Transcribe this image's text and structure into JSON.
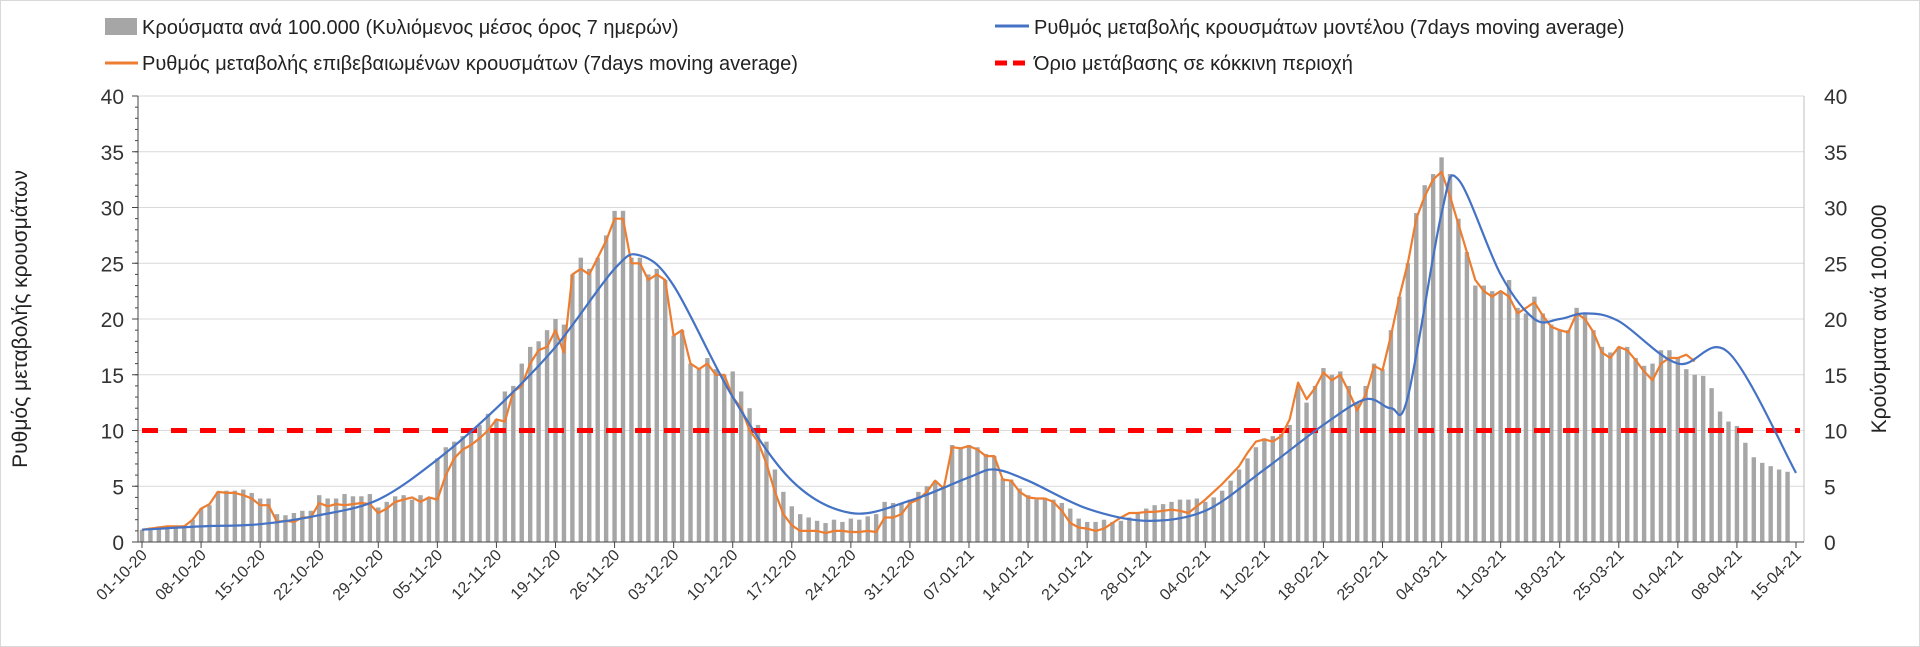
{
  "chart_data": {
    "type": "bar+line",
    "legend": {
      "bars": "Κρούσματα ανά 100.000 (Κυλιόμενος μέσος όρος 7 ημερών)",
      "model": "Ρυθμός μεταβολής κρουσμάτων μοντέλου (7days moving average)",
      "confirmed": "Ρυθμός μεταβολής επιβεβαιωμένων κρουσμάτων (7days moving average)",
      "threshold": "Όριο μετάβασης σε κόκκινη περιοχή"
    },
    "legend_position": "top",
    "ylabel_left": "Ρυθμός μεταβολής κρουσμάτων",
    "ylabel_right": "Κρούσματα ανά 100.000",
    "ylim": [
      0,
      40
    ],
    "yticks": [
      "0",
      "5",
      "10",
      "15",
      "20",
      "25",
      "30",
      "35",
      "40"
    ],
    "x_tick_labels": [
      "01-10-20",
      "08-10-20",
      "15-10-20",
      "22-10-20",
      "29-10-20",
      "05-11-20",
      "12-11-20",
      "19-11-20",
      "26-11-20",
      "03-12-20",
      "10-12-20",
      "17-12-20",
      "24-12-20",
      "31-12-20",
      "07-01-21",
      "14-01-21",
      "21-01-21",
      "28-01-21",
      "04-02-21",
      "11-02-21",
      "18-02-21",
      "25-02-21",
      "04-03-21",
      "11-03-21",
      "18-03-21",
      "25-03-21",
      "01-04-21",
      "08-04-21",
      "15-04-21"
    ],
    "x_range_days": [
      0,
      196
    ],
    "colors": {
      "bars": "#a6a6a6",
      "model": "#4472c4",
      "confirmed": "#ed7d31",
      "threshold": "#ff0000"
    },
    "threshold": 10,
    "bars": [
      1.1,
      1.3,
      1.4,
      1.4,
      1.4,
      1.5,
      2.0,
      3.0,
      3.3,
      4.5,
      4.6,
      4.6,
      4.7,
      4.4,
      3.9,
      3.9,
      2.5,
      2.4,
      2.6,
      2.8,
      2.8,
      4.2,
      3.9,
      3.9,
      4.3,
      4.1,
      4.1,
      4.3,
      3.1,
      3.6,
      4.1,
      4.2,
      3.8,
      4.2,
      4.0,
      7.5,
      8.5,
      9.0,
      9.5,
      10.0,
      10.5,
      11.5,
      11.0,
      13.5,
      14.0,
      16.0,
      17.5,
      18.0,
      19.0,
      20.0,
      19.5,
      24.0,
      25.5,
      24.5,
      25.5,
      27.5,
      29.7,
      29.7,
      25.5,
      25.5,
      24.0,
      24.5,
      23.5,
      18.5,
      19.0,
      16.0,
      15.5,
      16.5,
      15.5,
      15.0,
      15.3,
      13.5,
      12.0,
      10.5,
      9.0,
      6.5,
      4.5,
      3.2,
      2.5,
      2.2,
      1.9,
      1.7,
      2.0,
      1.8,
      2.1,
      2.0,
      2.3,
      2.5,
      3.6,
      3.5,
      3.5,
      3.8,
      4.5,
      5.0,
      5.5,
      4.8,
      8.7,
      8.5,
      8.7,
      8.5,
      7.9,
      7.7,
      5.7,
      5.6,
      4.8,
      4.2,
      3.8,
      3.9,
      3.8,
      3.5,
      3.0,
      2.1,
      1.8,
      1.8,
      2.0,
      1.8,
      1.9,
      2.2,
      2.6,
      3.0,
      3.3,
      3.4,
      3.6,
      3.8,
      3.8,
      3.9,
      3.6,
      4.0,
      4.6,
      5.5,
      6.5,
      7.5,
      8.5,
      9.3,
      9.5,
      9.7,
      10.5,
      14.0,
      12.5,
      14.0,
      15.6,
      15.0,
      15.3,
      14.0,
      12.5,
      14.0,
      16.0,
      15.5,
      19.0,
      22.0,
      25.0,
      29.5,
      32.0,
      33.0,
      34.5,
      33.0,
      29.0,
      26.0,
      23.0,
      23.0,
      22.5,
      22.5,
      23.5,
      21.0,
      20.5,
      22.0,
      20.5,
      19.5,
      19.0,
      19.0,
      21.0,
      20.5,
      19.0,
      17.5,
      17.0,
      17.5,
      17.5,
      16.5,
      15.8,
      16.0,
      17.2,
      17.2,
      16.5,
      15.5,
      15.0,
      14.9,
      13.8,
      11.7,
      10.8,
      10.4,
      8.9,
      7.6,
      7.1,
      6.8,
      6.5,
      6.3
    ],
    "confirmed": [
      1.1,
      1.2,
      1.3,
      1.4,
      1.4,
      1.4,
      2.0,
      3.0,
      3.4,
      4.5,
      4.4,
      4.4,
      4.2,
      3.9,
      3.3,
      3.3,
      1.8,
      1.9,
      1.8,
      2.2,
      2.2,
      3.5,
      3.2,
      3.4,
      3.3,
      3.4,
      3.5,
      3.4,
      2.6,
      3.0,
      3.6,
      3.8,
      4.0,
      3.6,
      4.0,
      3.8,
      6.0,
      7.5,
      8.3,
      8.7,
      9.3,
      10.0,
      11.0,
      10.8,
      13.5,
      14.0,
      16.0,
      17.2,
      17.5,
      19.0,
      17.0,
      24.0,
      24.5,
      24.0,
      25.5,
      27.0,
      29.0,
      29.0,
      25.0,
      25.0,
      23.5,
      24.0,
      23.5,
      18.5,
      19.0,
      16.0,
      15.5,
      16.0,
      15.0,
      15.0,
      13.0,
      12.0,
      10.0,
      9.0,
      7.0,
      4.5,
      2.5,
      1.5,
      1.0,
      1.0,
      1.0,
      0.8,
      1.0,
      1.0,
      0.9,
      0.9,
      1.0,
      0.9,
      2.2,
      2.2,
      2.5,
      3.5,
      3.8,
      4.5,
      5.5,
      4.8,
      8.5,
      8.4,
      8.6,
      8.3,
      7.7,
      7.7,
      5.6,
      5.5,
      4.5,
      4.0,
      3.9,
      3.9,
      3.6,
      2.8,
      1.7,
      1.3,
      1.2,
      1.0,
      1.2,
      1.7,
      2.2,
      2.6,
      2.6,
      2.7,
      2.7,
      2.8,
      2.9,
      2.8,
      2.6,
      3.2,
      3.8,
      4.5,
      5.2,
      6.0,
      6.8,
      8.0,
      9.0,
      9.2,
      9.0,
      9.5,
      11.0,
      14.3,
      12.8,
      13.8,
      15.2,
      14.5,
      15.0,
      13.5,
      11.8,
      13.2,
      15.8,
      15.4,
      18.5,
      22.0,
      25.0,
      29.0,
      31.0,
      32.5,
      33.2,
      31.0,
      28.5,
      26.0,
      23.5,
      22.5,
      22.0,
      22.5,
      22.0,
      20.5,
      21.0,
      21.5,
      20.3,
      19.3,
      19.0,
      18.8,
      20.5,
      20.0,
      18.8,
      17.0,
      16.5,
      17.5,
      17.2,
      16.3,
      15.3,
      14.5,
      16.0,
      16.5,
      16.5,
      16.8,
      16.2
    ],
    "model": {
      "day": [
        0,
        7,
        14,
        21,
        28,
        35,
        42,
        49,
        56,
        59,
        63,
        70,
        77,
        84,
        91,
        98,
        101,
        105,
        112,
        119,
        126,
        133,
        140,
        145,
        148,
        150,
        154,
        156,
        161,
        165,
        168,
        171,
        175,
        182,
        188,
        196
      ],
      "value": [
        1.1,
        1.4,
        1.6,
        2.4,
        3.8,
        7.4,
        12.0,
        17.5,
        24.5,
        25.7,
        23.0,
        13.0,
        5.5,
        2.6,
        3.7,
        5.8,
        6.5,
        5.5,
        3.0,
        1.9,
        2.8,
        6.5,
        10.5,
        12.8,
        12.0,
        13.0,
        29.5,
        32.5,
        24.0,
        20.0,
        20.0,
        20.5,
        19.8,
        16.0,
        17.0,
        6.2
      ]
    }
  }
}
